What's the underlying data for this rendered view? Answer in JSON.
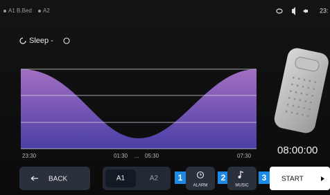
{
  "status": {
    "left": [
      "A1 B.Bed",
      "A2"
    ],
    "time": "23:"
  },
  "header": {
    "title": "Sleep -"
  },
  "chart": {
    "x_labels": [
      "23:30",
      "01:30",
      "...",
      "05:30",
      "07:30"
    ]
  },
  "clock": "08:00:00",
  "buttons": {
    "back": "BACK",
    "tabs": [
      "A1",
      "A2"
    ],
    "alarm": {
      "badge": "1",
      "label": "ALARM"
    },
    "music": {
      "badge": "2",
      "label": "MUSIC"
    },
    "start": {
      "badge": "3",
      "label": "START"
    }
  }
}
